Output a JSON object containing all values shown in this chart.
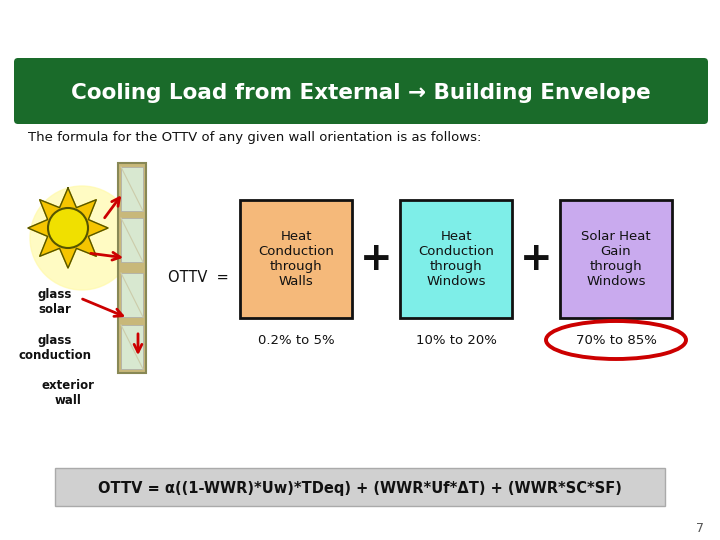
{
  "title": "Cooling Load from External → Building Envelope",
  "title_bg_color": "#1a6b2a",
  "title_text_color": "#ffffff",
  "subtitle": "The formula for the OTTV of any given wall orientation is as follows:",
  "bg_color": "#ffffff",
  "box1_color": "#f5b97a",
  "box2_color": "#7eeee8",
  "box3_color": "#c9aaee",
  "box1_label": "Heat\nConduction\nthrough\nWalls",
  "box2_label": "Heat\nConduction\nthrough\nWindows",
  "box3_label": "Solar Heat\nGain\nthrough\nWindows",
  "box1_pct": "0.2% to 5%",
  "box2_pct": "10% to 20%",
  "box3_pct": "70% to 85%",
  "ottv_label": "OTTV  =",
  "formula": "OTTV = α((1-WWR)*Uw)*TDeq) + (WWR*Uf*ΔT) + (WWR*SC*SF)",
  "formula_bg": "#d0d0d0",
  "left_labels": [
    "glass\nsolar",
    "glass\nconduction",
    "exterior\nwall"
  ],
  "page_num": "7",
  "box_border_color": "#111111",
  "plus_color": "#111111",
  "ellipse_color": "#cc0000",
  "sun_color_outer": "#f5c400",
  "sun_color_inner": "#f0e000",
  "sun_outline": "#555500",
  "arrow_color": "#cc0000",
  "wall_color": "#c8b87a",
  "wall_frame_color": "#888855",
  "glass_color": "#d8e8d0"
}
